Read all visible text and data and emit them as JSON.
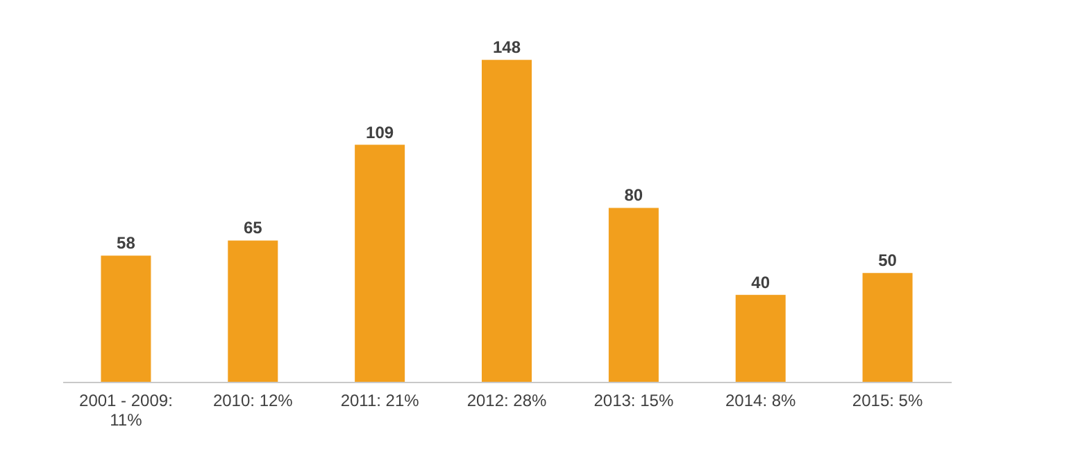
{
  "chart_data": {
    "type": "bar",
    "categories": [
      "2001 - 2009: 11%",
      "2010: 12%",
      "2011: 21%",
      "2012: 28%",
      "2013: 15%",
      "2014: 8%",
      "2015: 5%"
    ],
    "values": [
      58,
      65,
      109,
      148,
      80,
      40,
      50
    ],
    "color": "#f29f1d",
    "data_labels": true
  }
}
